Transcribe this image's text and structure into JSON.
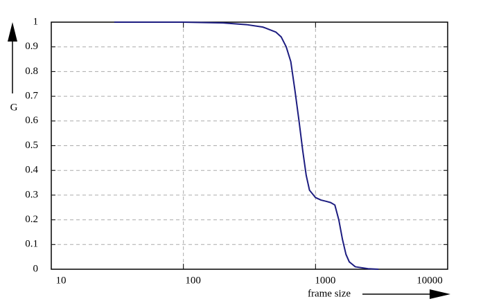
{
  "chart_data": {
    "type": "line",
    "xlabel": "frame size",
    "ylabel": "G",
    "xscale": "log",
    "grid": true,
    "xlim": [
      10,
      10000
    ],
    "xticks": [
      10,
      100,
      1000,
      10000
    ],
    "ylim": [
      0,
      1
    ],
    "yticks": [
      0,
      0.1,
      0.2,
      0.3,
      0.4,
      0.5,
      0.6,
      0.7,
      0.8,
      0.9,
      1
    ],
    "series": [
      {
        "color": "#1c1c80",
        "x": [
          30,
          100,
          200,
          300,
          400,
          500,
          550,
          600,
          650,
          700,
          750,
          800,
          850,
          900,
          1000,
          1100,
          1200,
          1300,
          1400,
          1500,
          1600,
          1700,
          1800,
          2000,
          2500,
          3000
        ],
        "values": [
          1,
          1,
          0.997,
          0.99,
          0.98,
          0.96,
          0.94,
          0.9,
          0.84,
          0.72,
          0.6,
          0.48,
          0.38,
          0.32,
          0.29,
          0.28,
          0.275,
          0.27,
          0.26,
          0.2,
          0.12,
          0.06,
          0.03,
          0.01,
          0.002,
          0
        ]
      }
    ]
  }
}
